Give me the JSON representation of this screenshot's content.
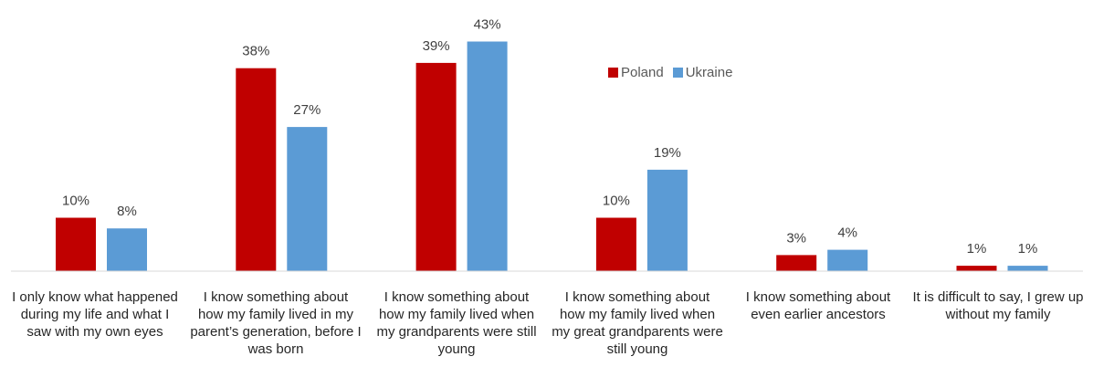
{
  "chart_data": {
    "type": "bar",
    "categories": [
      "I only know what happened during my life and what I saw with my own eyes",
      "I know something about how my family lived in my parent’s generation, before I was born",
      "I know something about how my family lived when my grandparents were still young",
      "I know something about how my family lived when my great grandparents were still young",
      "I know something about even earlier ancestors",
      "It is difficult to say, I grew up without my family"
    ],
    "series": [
      {
        "name": "Poland",
        "color": "#c00000",
        "values": [
          10,
          38,
          39,
          10,
          3,
          1
        ],
        "labels": [
          "10%",
          "38%",
          "39%",
          "10%",
          "3%",
          "1%"
        ]
      },
      {
        "name": "Ukraine",
        "color": "#5b9bd5",
        "values": [
          8,
          27,
          43,
          19,
          4,
          1
        ],
        "labels": [
          "8%",
          "27%",
          "43%",
          "19%",
          "4%",
          "1%"
        ]
      }
    ],
    "value_unit": "%",
    "axis_line_color": "#d9d9d9",
    "grid": false,
    "legend_position": "top-right",
    "title": "",
    "xlabel": "",
    "ylabel": ""
  }
}
